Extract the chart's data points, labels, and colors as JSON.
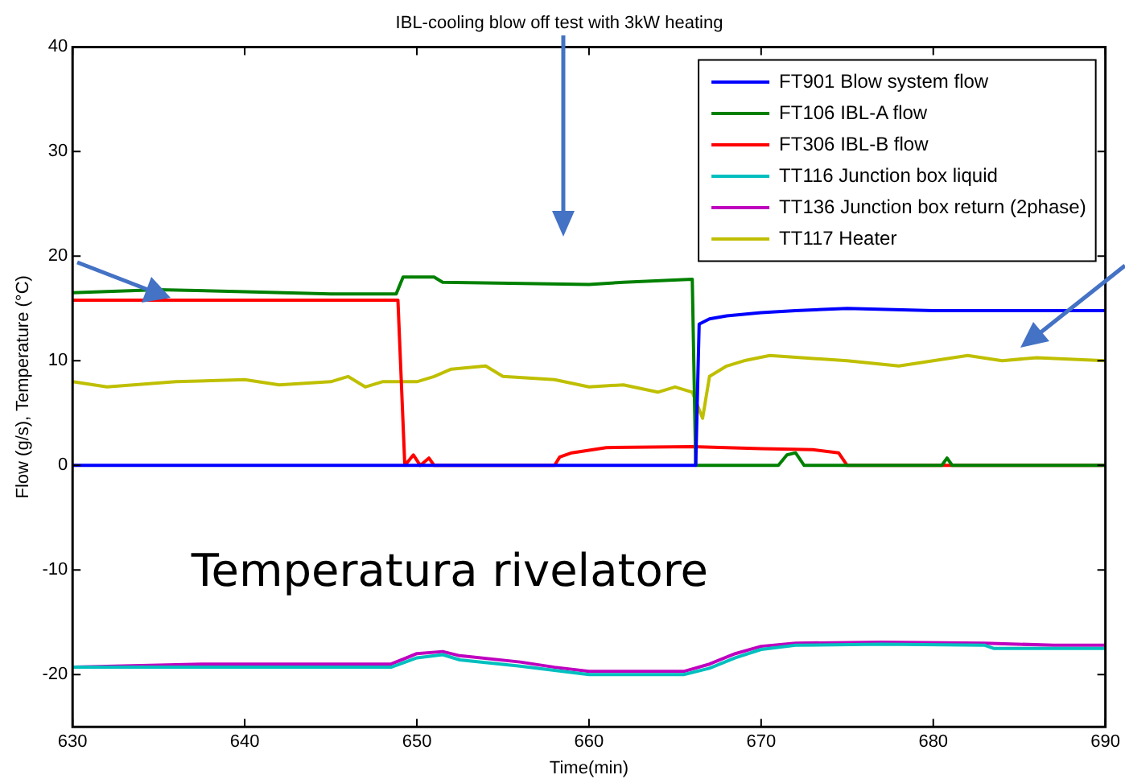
{
  "chart_data": {
    "type": "line",
    "title": "IBL-cooling blow off test with 3kW heating",
    "xlabel": "Time(min)",
    "ylabel": "Flow (g/s), Temperature (°C)",
    "xlim": [
      630,
      690
    ],
    "xticks": [
      630,
      640,
      650,
      660,
      670,
      680,
      690
    ],
    "ylim": [
      -25,
      40
    ],
    "yticks": [
      -20,
      -10,
      0,
      10,
      20,
      30,
      40
    ],
    "legend": "top right",
    "grid": false,
    "marker": "none",
    "line_style": "solid",
    "annotations": [
      "Temperatura rivelatore"
    ],
    "series": [
      {
        "name": "FT901 Blow system flow",
        "color": "#0000ff",
        "x": [
          630,
          666.2,
          666.4,
          667,
          668,
          670,
          672,
          675,
          680,
          685,
          690
        ],
        "values": [
          0,
          0,
          13.5,
          14,
          14.3,
          14.6,
          14.8,
          15,
          14.8,
          14.8,
          14.8
        ]
      },
      {
        "name": "FT106 IBL-A flow",
        "color": "#008000",
        "x": [
          630,
          635,
          640,
          645,
          648.8,
          649.2,
          651,
          651.5,
          660,
          662,
          666,
          666.2,
          671,
          671.5,
          672,
          672.5,
          680.5,
          680.8,
          681.1,
          690
        ],
        "values": [
          16.5,
          16.8,
          16.6,
          16.4,
          16.4,
          18,
          18,
          17.5,
          17.3,
          17.5,
          17.8,
          0,
          0,
          1,
          1.2,
          0,
          0,
          0.7,
          0,
          0
        ]
      },
      {
        "name": "FT306 IBL-B flow",
        "color": "#ff0000",
        "x": [
          630,
          640,
          648.9,
          649.3,
          649.8,
          650.2,
          650.7,
          651,
          658,
          658.3,
          659,
          661,
          666,
          670,
          673,
          674.5,
          675,
          690
        ],
        "values": [
          15.8,
          15.8,
          15.8,
          0,
          1,
          0,
          0.7,
          0,
          0,
          0.8,
          1.2,
          1.7,
          1.8,
          1.6,
          1.5,
          1.2,
          0,
          0
        ]
      },
      {
        "name": "TT116 Junction box liquid",
        "color": "#00bfbf",
        "x": [
          630,
          635,
          648.5,
          650,
          651.5,
          652.5,
          656,
          658,
          660,
          665.5,
          667,
          668.5,
          670,
          672,
          677,
          683,
          683.5,
          690
        ],
        "values": [
          -19.3,
          -19.3,
          -19.3,
          -18.4,
          -18.1,
          -18.6,
          -19.2,
          -19.6,
          -20,
          -20,
          -19.4,
          -18.4,
          -17.6,
          -17.2,
          -17.1,
          -17.2,
          -17.5,
          -17.5
        ]
      },
      {
        "name": "TT136 Junction box return (2phase)",
        "color": "#bf00bf",
        "x": [
          630,
          637.5,
          648.5,
          650,
          651.5,
          652.5,
          656,
          658,
          660,
          665.5,
          667,
          668.5,
          670,
          672,
          677,
          683,
          687,
          690
        ],
        "values": [
          -19.3,
          -19,
          -19,
          -18,
          -17.8,
          -18.2,
          -18.8,
          -19.3,
          -19.7,
          -19.7,
          -19,
          -18,
          -17.3,
          -17,
          -16.9,
          -17,
          -17.2,
          -17.2
        ]
      },
      {
        "name": "TT117 Heater",
        "color": "#bfbf00",
        "x": [
          630,
          632,
          636,
          640,
          642,
          645,
          646,
          647,
          648,
          650,
          651,
          652,
          654,
          655,
          658,
          660,
          662,
          664,
          665,
          666,
          666.6,
          667,
          668,
          669,
          670.5,
          675,
          678,
          680,
          682,
          684,
          686,
          690
        ],
        "values": [
          8,
          7.5,
          8,
          8.2,
          7.7,
          8,
          8.5,
          7.5,
          8,
          8,
          8.5,
          9.2,
          9.5,
          8.5,
          8.2,
          7.5,
          7.7,
          7,
          7.5,
          7,
          4.5,
          8.5,
          9.5,
          10,
          10.5,
          10,
          9.5,
          10,
          10.5,
          10,
          10.3,
          10
        ]
      }
    ]
  }
}
